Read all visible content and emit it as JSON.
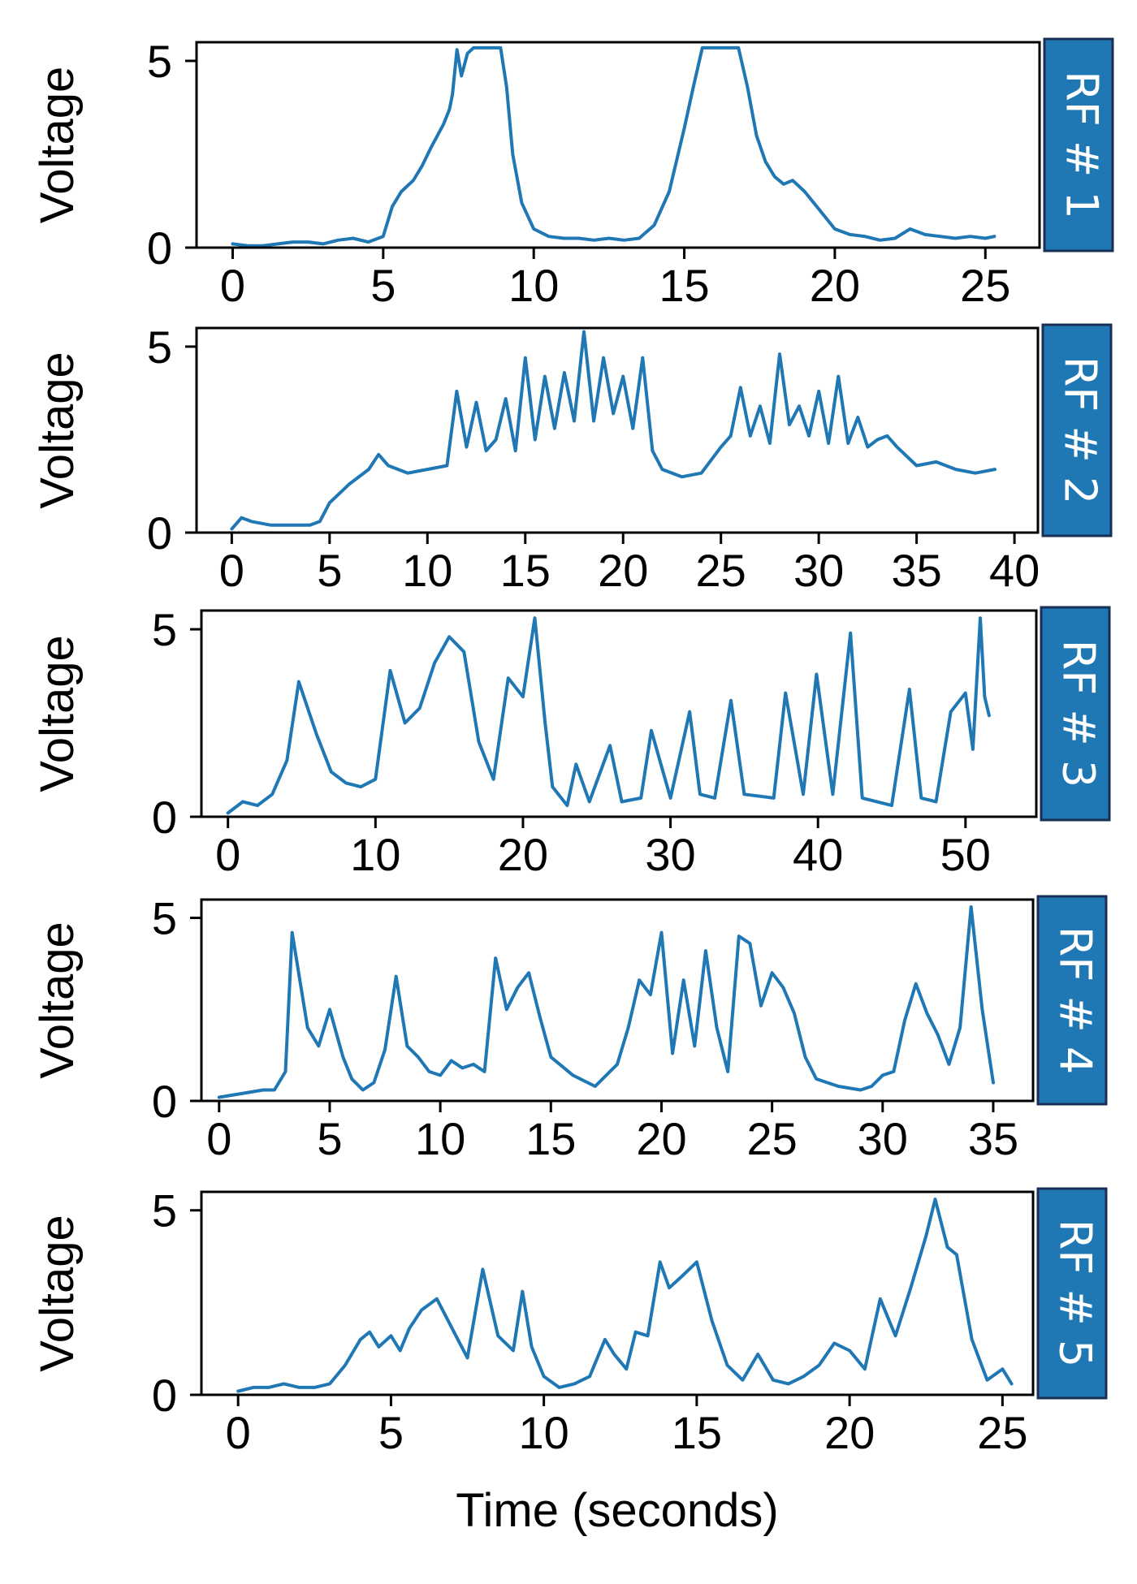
{
  "figure": {
    "xlabel": "Time (seconds)",
    "line_color": "#1f77b4",
    "label_box_color": "#1f77b4",
    "label_box_border": "#1a2f55"
  },
  "chart_data": [
    {
      "type": "line",
      "panel_label": "RF # 1",
      "ylabel": "Voltage",
      "ylim": [
        0,
        5.5
      ],
      "yticks": [
        0,
        5
      ],
      "xlim": [
        -1.2,
        26.8
      ],
      "xticks": [
        0,
        5,
        10,
        15,
        20,
        25
      ],
      "series": [
        {
          "x": [
            0,
            0.5,
            1,
            1.5,
            2,
            2.5,
            3,
            3.5,
            4,
            4.5,
            5,
            5.3,
            5.6,
            6,
            6.3,
            6.6,
            7,
            7.2,
            7.3,
            7.45,
            7.6,
            7.8,
            8,
            8.3,
            8.6,
            8.9,
            9.1,
            9.3,
            9.6,
            10,
            10.5,
            11,
            11.5,
            12,
            12.5,
            13,
            13.5,
            14,
            14.5,
            15,
            15.3,
            15.6,
            15.9,
            16.2,
            16.5,
            16.8,
            17.1,
            17.4,
            17.7,
            18,
            18.3,
            18.6,
            19,
            19.5,
            20,
            20.5,
            21,
            21.5,
            22,
            22.5,
            23,
            23.5,
            24,
            24.5,
            25,
            25.3
          ],
          "y": [
            0.1,
            0.05,
            0.05,
            0.1,
            0.15,
            0.15,
            0.1,
            0.2,
            0.25,
            0.15,
            0.3,
            1.1,
            1.5,
            1.8,
            2.2,
            2.7,
            3.3,
            3.7,
            4.1,
            5.3,
            4.6,
            5.2,
            5.35,
            5.35,
            5.35,
            5.35,
            4.3,
            2.5,
            1.2,
            0.5,
            0.3,
            0.25,
            0.25,
            0.2,
            0.25,
            0.2,
            0.25,
            0.6,
            1.5,
            3.2,
            4.3,
            5.35,
            5.35,
            5.35,
            5.35,
            5.35,
            4.3,
            3.0,
            2.3,
            1.9,
            1.7,
            1.8,
            1.5,
            1.0,
            0.5,
            0.35,
            0.3,
            0.2,
            0.25,
            0.5,
            0.35,
            0.3,
            0.25,
            0.3,
            0.25,
            0.3
          ]
        }
      ]
    },
    {
      "type": "line",
      "panel_label": "RF # 2",
      "ylabel": "Voltage",
      "ylim": [
        0,
        5.5
      ],
      "yticks": [
        0,
        5
      ],
      "xlim": [
        -1.8,
        41.2
      ],
      "xticks": [
        0,
        5,
        10,
        15,
        20,
        25,
        30,
        35,
        40
      ],
      "series": [
        {
          "x": [
            0,
            0.5,
            1,
            2,
            3,
            4,
            4.5,
            5,
            6,
            7,
            7.5,
            8,
            9,
            10,
            11,
            11.5,
            12,
            12.5,
            13,
            13.5,
            14,
            14.5,
            15,
            15.5,
            16,
            16.5,
            17,
            17.5,
            18,
            18.5,
            19,
            19.5,
            20,
            20.5,
            21,
            21.5,
            22,
            23,
            24,
            25,
            25.5,
            26,
            26.5,
            27,
            27.5,
            28,
            28.5,
            29,
            29.5,
            30,
            30.5,
            31,
            31.5,
            32,
            32.5,
            33,
            33.5,
            34,
            35,
            36,
            37,
            38,
            39
          ],
          "y": [
            0.1,
            0.4,
            0.3,
            0.2,
            0.2,
            0.2,
            0.3,
            0.8,
            1.3,
            1.7,
            2.1,
            1.8,
            1.6,
            1.7,
            1.8,
            3.8,
            2.3,
            3.5,
            2.2,
            2.5,
            3.6,
            2.2,
            4.7,
            2.5,
            4.2,
            2.8,
            4.3,
            3.0,
            5.4,
            3.0,
            4.7,
            3.2,
            4.2,
            2.8,
            4.7,
            2.2,
            1.7,
            1.5,
            1.6,
            2.3,
            2.6,
            3.9,
            2.6,
            3.4,
            2.4,
            4.8,
            2.9,
            3.4,
            2.6,
            3.8,
            2.4,
            4.2,
            2.4,
            3.1,
            2.3,
            2.5,
            2.6,
            2.3,
            1.8,
            1.9,
            1.7,
            1.6,
            1.7
          ]
        }
      ]
    },
    {
      "type": "line",
      "panel_label": "RF # 3",
      "ylabel": "Voltage",
      "ylim": [
        0,
        5.5
      ],
      "yticks": [
        0,
        5
      ],
      "xlim": [
        -1.8,
        54.8
      ],
      "xticks": [
        0,
        10,
        20,
        30,
        40,
        50
      ],
      "series": [
        {
          "x": [
            0,
            1,
            2,
            3,
            4,
            4.8,
            6,
            7,
            8,
            9,
            10,
            11,
            11.5,
            12,
            13,
            14,
            15,
            16,
            17,
            18,
            19,
            20,
            20.8,
            21.5,
            22,
            23,
            23.6,
            24.5,
            25.9,
            26.7,
            28,
            28.7,
            30,
            31.3,
            32,
            33,
            34.1,
            35,
            37,
            37.8,
            39,
            39.9,
            41,
            42.2,
            43,
            45,
            46.2,
            47,
            48,
            49,
            50,
            50.5,
            51,
            51.3,
            51.6
          ],
          "y": [
            0.1,
            0.4,
            0.3,
            0.6,
            1.5,
            3.6,
            2.2,
            1.2,
            0.9,
            0.8,
            1.0,
            3.9,
            3.2,
            2.5,
            2.9,
            4.1,
            4.8,
            4.4,
            2.0,
            1.0,
            3.7,
            3.2,
            5.3,
            2.5,
            0.8,
            0.3,
            1.4,
            0.4,
            1.9,
            0.4,
            0.5,
            2.3,
            0.5,
            2.8,
            0.6,
            0.5,
            3.1,
            0.6,
            0.5,
            3.3,
            0.6,
            3.8,
            0.6,
            4.9,
            0.5,
            0.3,
            3.4,
            0.5,
            0.4,
            2.8,
            3.3,
            1.8,
            5.3,
            3.2,
            2.7
          ]
        }
      ]
    },
    {
      "type": "line",
      "panel_label": "RF # 4",
      "ylabel": "Voltage",
      "ylim": [
        0,
        5.5
      ],
      "yticks": [
        0,
        5
      ],
      "xlim": [
        -0.8,
        36.8
      ],
      "xticks": [
        0,
        5,
        10,
        15,
        20,
        25,
        30,
        35
      ],
      "series": [
        {
          "x": [
            0,
            1,
            2,
            2.5,
            3,
            3.3,
            4,
            4.5,
            5,
            5.6,
            6,
            6.5,
            7,
            7.5,
            8,
            8.5,
            9,
            9.5,
            10,
            10.5,
            11,
            11.5,
            12,
            12.5,
            13,
            13.5,
            14,
            14.5,
            15,
            16,
            17,
            18,
            18.5,
            19,
            19.5,
            20,
            20.5,
            21,
            21.5,
            22,
            22.5,
            23,
            23.5,
            24,
            24.5,
            25,
            25.5,
            26,
            26.5,
            27,
            28,
            29,
            29.5,
            30,
            30.5,
            31,
            31.5,
            32,
            32.5,
            33,
            33.5,
            34,
            34.5,
            35
          ],
          "y": [
            0.1,
            0.2,
            0.3,
            0.3,
            0.8,
            4.6,
            2.0,
            1.5,
            2.5,
            1.2,
            0.6,
            0.3,
            0.5,
            1.4,
            3.4,
            1.5,
            1.2,
            0.8,
            0.7,
            1.1,
            0.9,
            1.0,
            0.8,
            3.9,
            2.5,
            3.1,
            3.5,
            2.3,
            1.2,
            0.7,
            0.4,
            1.0,
            2.0,
            3.3,
            2.9,
            4.6,
            1.3,
            3.3,
            1.5,
            4.1,
            2.0,
            0.8,
            4.5,
            4.3,
            2.6,
            3.5,
            3.1,
            2.4,
            1.2,
            0.6,
            0.4,
            0.3,
            0.4,
            0.7,
            0.8,
            2.2,
            3.2,
            2.4,
            1.8,
            1.0,
            2.0,
            5.3,
            2.5,
            0.5
          ]
        }
      ]
    },
    {
      "type": "line",
      "panel_label": "RF # 5",
      "ylabel": "Voltage",
      "ylim": [
        0,
        5.5
      ],
      "yticks": [
        0,
        5
      ],
      "xlim": [
        -1.2,
        26.0
      ],
      "xticks": [
        0,
        5,
        10,
        15,
        20,
        25
      ],
      "series": [
        {
          "x": [
            0,
            0.5,
            1,
            1.5,
            2,
            2.5,
            3,
            3.5,
            4,
            4.3,
            4.6,
            5,
            5.3,
            5.6,
            6,
            6.5,
            7,
            7.5,
            8,
            8.5,
            9,
            9.3,
            9.6,
            10,
            10.5,
            11,
            11.5,
            12,
            12.3,
            12.7,
            13,
            13.4,
            13.8,
            14.1,
            14.5,
            15,
            15.5,
            16,
            16.5,
            17,
            17.5,
            18,
            18.5,
            19,
            19.5,
            20,
            20.5,
            21,
            21.5,
            22,
            22.5,
            22.8,
            23.2,
            23.5,
            24,
            24.5,
            25,
            25.3
          ],
          "y": [
            0.1,
            0.2,
            0.2,
            0.3,
            0.2,
            0.2,
            0.3,
            0.8,
            1.5,
            1.7,
            1.3,
            1.6,
            1.2,
            1.8,
            2.3,
            2.6,
            1.8,
            1.0,
            3.4,
            1.6,
            1.2,
            2.8,
            1.3,
            0.5,
            0.2,
            0.3,
            0.5,
            1.5,
            1.1,
            0.7,
            1.7,
            1.6,
            3.6,
            2.9,
            3.2,
            3.6,
            2.0,
            0.8,
            0.4,
            1.1,
            0.4,
            0.3,
            0.5,
            0.8,
            1.4,
            1.2,
            0.7,
            2.6,
            1.6,
            2.9,
            4.3,
            5.3,
            4.0,
            3.8,
            1.5,
            0.4,
            0.7,
            0.3
          ]
        }
      ]
    }
  ]
}
